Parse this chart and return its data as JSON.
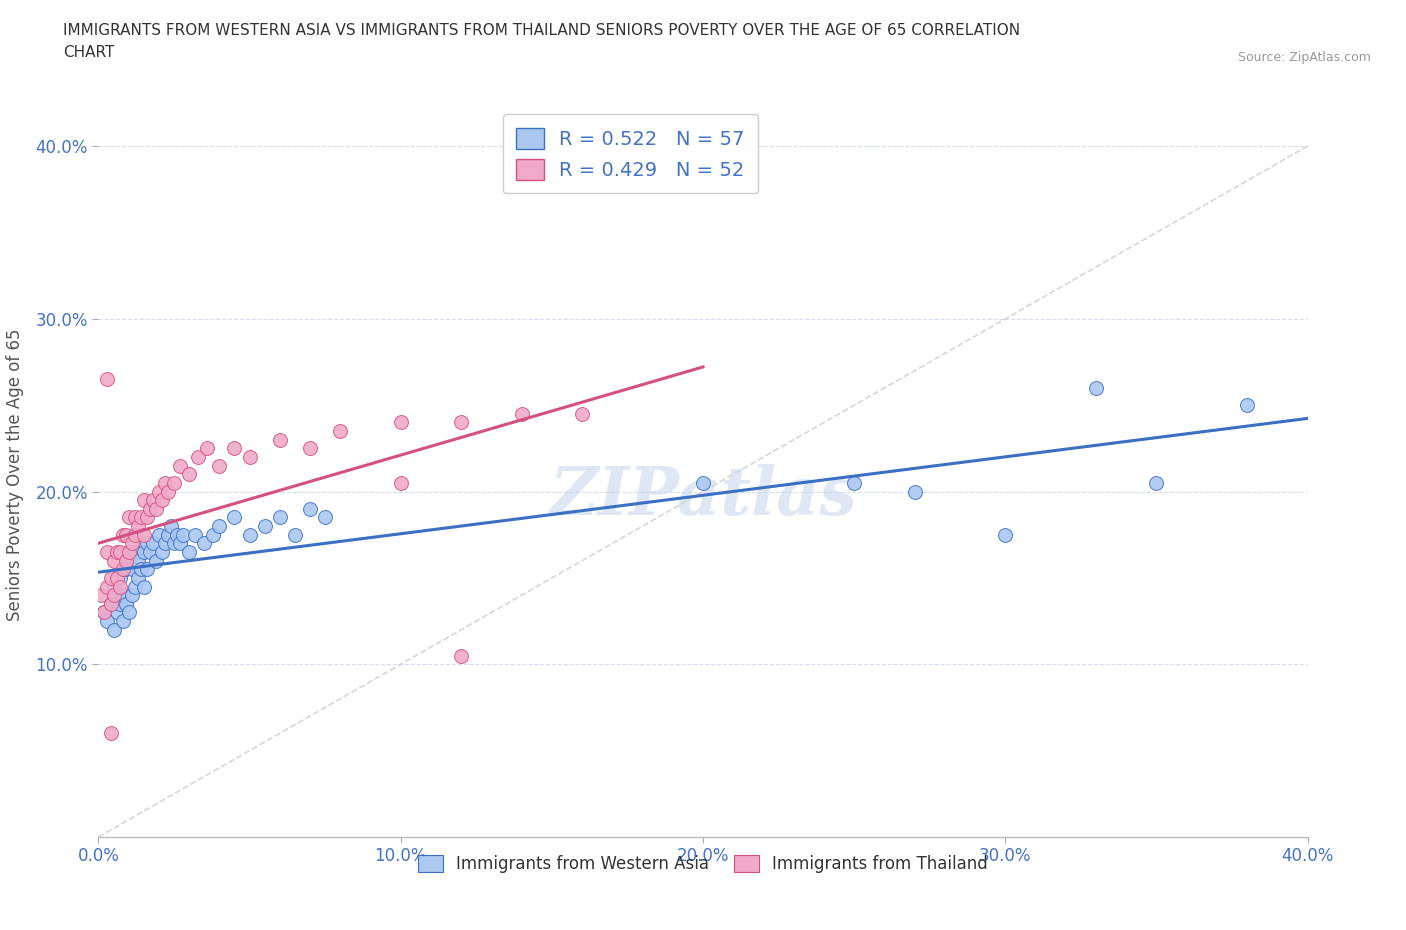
{
  "title_line1": "IMMIGRANTS FROM WESTERN ASIA VS IMMIGRANTS FROM THAILAND SENIORS POVERTY OVER THE AGE OF 65 CORRELATION",
  "title_line2": "CHART",
  "source": "Source: ZipAtlas.com",
  "ylabel": "Seniors Poverty Over the Age of 65",
  "xlim": [
    0.0,
    0.4
  ],
  "ylim": [
    0.0,
    0.42
  ],
  "xticks": [
    0.0,
    0.1,
    0.2,
    0.3,
    0.4
  ],
  "yticks": [
    0.1,
    0.2,
    0.3,
    0.4
  ],
  "xtick_labels": [
    "0.0%",
    "10.0%",
    "20.0%",
    "30.0%",
    "40.0%"
  ],
  "ytick_labels": [
    "10.0%",
    "20.0%",
    "30.0%",
    "40.0%"
  ],
  "R_western": 0.522,
  "N_western": 57,
  "R_thailand": 0.429,
  "N_thailand": 52,
  "color_western": "#aac8f0",
  "color_thailand": "#f0aac8",
  "trend_western_color": "#3a6fc4",
  "trend_thailand_color": "#d45080",
  "trend_dashed_color": "#cccccc",
  "watermark": "ZIPatlas",
  "western_x": [
    0.002,
    0.003,
    0.004,
    0.005,
    0.005,
    0.006,
    0.006,
    0.007,
    0.007,
    0.008,
    0.008,
    0.009,
    0.009,
    0.01,
    0.01,
    0.011,
    0.011,
    0.012,
    0.012,
    0.013,
    0.013,
    0.014,
    0.015,
    0.015,
    0.016,
    0.016,
    0.017,
    0.018,
    0.019,
    0.02,
    0.021,
    0.022,
    0.023,
    0.024,
    0.025,
    0.026,
    0.027,
    0.028,
    0.03,
    0.032,
    0.035,
    0.038,
    0.04,
    0.045,
    0.05,
    0.055,
    0.06,
    0.065,
    0.07,
    0.075,
    0.2,
    0.25,
    0.27,
    0.3,
    0.33,
    0.35,
    0.38
  ],
  "western_y": [
    0.13,
    0.125,
    0.135,
    0.12,
    0.145,
    0.13,
    0.14,
    0.135,
    0.15,
    0.125,
    0.14,
    0.135,
    0.155,
    0.13,
    0.16,
    0.14,
    0.155,
    0.145,
    0.165,
    0.15,
    0.16,
    0.155,
    0.145,
    0.165,
    0.155,
    0.17,
    0.165,
    0.17,
    0.16,
    0.175,
    0.165,
    0.17,
    0.175,
    0.18,
    0.17,
    0.175,
    0.17,
    0.175,
    0.165,
    0.175,
    0.17,
    0.175,
    0.18,
    0.185,
    0.175,
    0.18,
    0.185,
    0.175,
    0.19,
    0.185,
    0.205,
    0.205,
    0.2,
    0.175,
    0.26,
    0.205,
    0.25
  ],
  "thailand_x": [
    0.001,
    0.002,
    0.003,
    0.003,
    0.004,
    0.004,
    0.005,
    0.005,
    0.006,
    0.006,
    0.007,
    0.007,
    0.008,
    0.008,
    0.009,
    0.009,
    0.01,
    0.01,
    0.011,
    0.012,
    0.012,
    0.013,
    0.014,
    0.015,
    0.015,
    0.016,
    0.017,
    0.018,
    0.019,
    0.02,
    0.021,
    0.022,
    0.023,
    0.025,
    0.027,
    0.03,
    0.033,
    0.036,
    0.04,
    0.045,
    0.05,
    0.06,
    0.07,
    0.08,
    0.1,
    0.12,
    0.14,
    0.16,
    0.003,
    0.004,
    0.1,
    0.12
  ],
  "thailand_y": [
    0.14,
    0.13,
    0.145,
    0.165,
    0.135,
    0.15,
    0.14,
    0.16,
    0.15,
    0.165,
    0.145,
    0.165,
    0.155,
    0.175,
    0.16,
    0.175,
    0.165,
    0.185,
    0.17,
    0.175,
    0.185,
    0.18,
    0.185,
    0.175,
    0.195,
    0.185,
    0.19,
    0.195,
    0.19,
    0.2,
    0.195,
    0.205,
    0.2,
    0.205,
    0.215,
    0.21,
    0.22,
    0.225,
    0.215,
    0.225,
    0.22,
    0.23,
    0.225,
    0.235,
    0.24,
    0.24,
    0.245,
    0.245,
    0.265,
    0.06,
    0.205,
    0.105
  ],
  "trend_western_x0": 0.0,
  "trend_western_y0": 0.125,
  "trend_western_x1": 0.4,
  "trend_western_y1": 0.25,
  "trend_thailand_x0": 0.0,
  "trend_thailand_y0": 0.145,
  "trend_thailand_x1": 0.2,
  "trend_thailand_y1": 0.245
}
